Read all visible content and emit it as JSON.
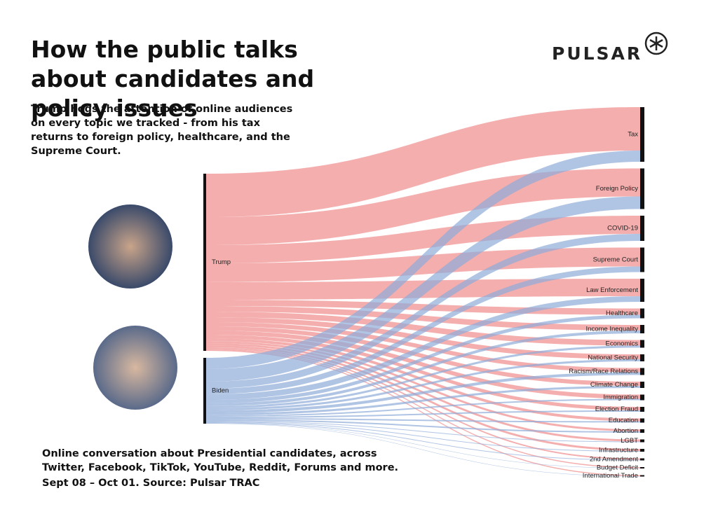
{
  "chart_data": {
    "type": "sankey",
    "title": "How the public talks about candidates and policy issues",
    "subtitle": "Trump hogs the attention of online audiences on every topic we tracked - from his tax returns to foreign policy, healthcare, and the Supreme Court.",
    "note": "Online conversation about Presidential candidates, across Twitter, Facebook, TikTok, YouTube, Reddit, Forums and more.",
    "source": "Sept 08 – Oct 01. Source: Pulsar TRAC",
    "brand": "PULSAR",
    "categories": [
      "Tax",
      "Foreign Policy",
      "COVID-19",
      "Supreme Court",
      "Law Enforcement",
      "Healthcare",
      "Income Inequality",
      "Economics",
      "National Security",
      "Racism/Race Relations",
      "Climate Change",
      "Immigration",
      "Election Fraud",
      "Education",
      "Abortion",
      "LGBT",
      "Infrastructure",
      "2nd Amendment",
      "Budget Deficit",
      "International Trade"
    ],
    "series": [
      {
        "name": "Trump",
        "color": "#f08c8c",
        "values": [
          62,
          40,
          26,
          27,
          25,
          9,
          8,
          8,
          7,
          6,
          6,
          6,
          5,
          4,
          3,
          3,
          3,
          2,
          1.5,
          1.5
        ]
      },
      {
        "name": "Biden",
        "color": "#8fabd8",
        "values": [
          16,
          18,
          10,
          8,
          8,
          5,
          4,
          3,
          3,
          4,
          3,
          2,
          2,
          2,
          2,
          1,
          1,
          1,
          0.5,
          0.5
        ]
      }
    ]
  }
}
